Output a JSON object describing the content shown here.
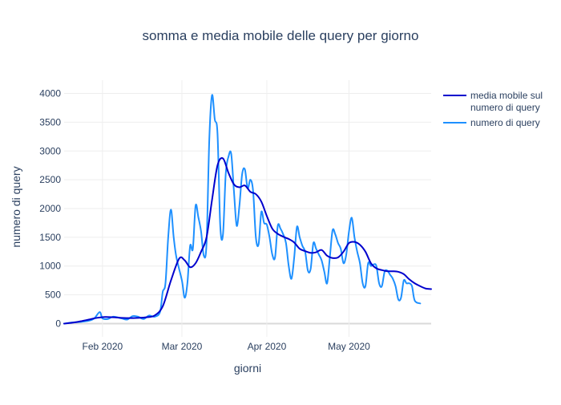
{
  "chart_data": {
    "type": "line",
    "title": "somma e media mobile delle query per giorno",
    "xlabel": "giorni",
    "ylabel": "numero di query",
    "x_tick_labels": [
      {
        "date": "2020-02-01",
        "label": "Feb 2020"
      },
      {
        "date": "2020-03-01",
        "label": "Mar 2020"
      },
      {
        "date": "2020-04-01",
        "label": "Apr 2020"
      },
      {
        "date": "2020-05-01",
        "label": "May 2020"
      }
    ],
    "x_range": [
      "2020-01-18",
      "2020-05-31"
    ],
    "y_range": [
      -230,
      4230
    ],
    "y_ticks": [
      0,
      500,
      1000,
      1500,
      2000,
      2500,
      3000,
      3500,
      4000
    ],
    "grid": true,
    "legend_position": "right",
    "series": [
      {
        "name": "media mobile sul numero di query",
        "legend_lines": [
          "media mobile sul",
          "numero di query"
        ],
        "color": "#0000cd",
        "points": [
          [
            "2020-01-18",
            0
          ],
          [
            "2020-01-21",
            15
          ],
          [
            "2020-01-24",
            40
          ],
          [
            "2020-01-27",
            70
          ],
          [
            "2020-01-30",
            100
          ],
          [
            "2020-02-02",
            115
          ],
          [
            "2020-02-05",
            110
          ],
          [
            "2020-02-08",
            100
          ],
          [
            "2020-02-11",
            95
          ],
          [
            "2020-02-14",
            100
          ],
          [
            "2020-02-17",
            110
          ],
          [
            "2020-02-20",
            140
          ],
          [
            "2020-02-23",
            300
          ],
          [
            "2020-02-26",
            750
          ],
          [
            "2020-02-29",
            1130
          ],
          [
            "2020-03-02",
            1100
          ],
          [
            "2020-03-04",
            980
          ],
          [
            "2020-03-06",
            1050
          ],
          [
            "2020-03-08",
            1250
          ],
          [
            "2020-03-10",
            1500
          ],
          [
            "2020-03-12",
            2150
          ],
          [
            "2020-03-14",
            2750
          ],
          [
            "2020-03-16",
            2870
          ],
          [
            "2020-03-18",
            2620
          ],
          [
            "2020-03-20",
            2420
          ],
          [
            "2020-03-22",
            2370
          ],
          [
            "2020-03-24",
            2400
          ],
          [
            "2020-03-26",
            2290
          ],
          [
            "2020-03-28",
            2250
          ],
          [
            "2020-03-30",
            2120
          ],
          [
            "2020-04-01",
            1870
          ],
          [
            "2020-04-03",
            1650
          ],
          [
            "2020-04-05",
            1560
          ],
          [
            "2020-04-07",
            1510
          ],
          [
            "2020-04-09",
            1470
          ],
          [
            "2020-04-11",
            1410
          ],
          [
            "2020-04-13",
            1300
          ],
          [
            "2020-04-15",
            1260
          ],
          [
            "2020-04-17",
            1230
          ],
          [
            "2020-04-19",
            1240
          ],
          [
            "2020-04-21",
            1280
          ],
          [
            "2020-04-23",
            1180
          ],
          [
            "2020-04-25",
            1140
          ],
          [
            "2020-04-27",
            1150
          ],
          [
            "2020-04-29",
            1250
          ],
          [
            "2020-05-01",
            1400
          ],
          [
            "2020-05-03",
            1420
          ],
          [
            "2020-05-05",
            1370
          ],
          [
            "2020-05-07",
            1250
          ],
          [
            "2020-05-09",
            1050
          ],
          [
            "2020-05-11",
            960
          ],
          [
            "2020-05-13",
            930
          ],
          [
            "2020-05-15",
            910
          ],
          [
            "2020-05-17",
            910
          ],
          [
            "2020-05-19",
            900
          ],
          [
            "2020-05-21",
            860
          ],
          [
            "2020-05-23",
            770
          ],
          [
            "2020-05-25",
            700
          ],
          [
            "2020-05-27",
            650
          ],
          [
            "2020-05-29",
            610
          ],
          [
            "2020-05-31",
            600
          ]
        ]
      },
      {
        "name": "numero di query",
        "legend_lines": [
          "numero di query"
        ],
        "color": "#1e90ff",
        "points": [
          [
            "2020-01-18",
            0
          ],
          [
            "2020-01-21",
            20
          ],
          [
            "2020-01-24",
            30
          ],
          [
            "2020-01-27",
            50
          ],
          [
            "2020-01-29",
            90
          ],
          [
            "2020-01-31",
            200
          ],
          [
            "2020-02-01",
            90
          ],
          [
            "2020-02-03",
            80
          ],
          [
            "2020-02-05",
            120
          ],
          [
            "2020-02-08",
            90
          ],
          [
            "2020-02-10",
            70
          ],
          [
            "2020-02-12",
            130
          ],
          [
            "2020-02-14",
            120
          ],
          [
            "2020-02-16",
            80
          ],
          [
            "2020-02-18",
            140
          ],
          [
            "2020-02-20",
            120
          ],
          [
            "2020-02-22",
            200
          ],
          [
            "2020-02-23",
            550
          ],
          [
            "2020-02-24",
            700
          ],
          [
            "2020-02-25",
            1500
          ],
          [
            "2020-02-26",
            1980
          ],
          [
            "2020-02-27",
            1500
          ],
          [
            "2020-02-28",
            1150
          ],
          [
            "2020-03-01",
            750
          ],
          [
            "2020-03-02",
            450
          ],
          [
            "2020-03-03",
            700
          ],
          [
            "2020-03-04",
            1350
          ],
          [
            "2020-03-05",
            1300
          ],
          [
            "2020-03-06",
            2050
          ],
          [
            "2020-03-07",
            1850
          ],
          [
            "2020-03-08",
            1600
          ],
          [
            "2020-03-09",
            1180
          ],
          [
            "2020-03-10",
            1400
          ],
          [
            "2020-03-11",
            3200
          ],
          [
            "2020-03-12",
            3970
          ],
          [
            "2020-03-13",
            3550
          ],
          [
            "2020-03-14",
            3300
          ],
          [
            "2020-03-15",
            1700
          ],
          [
            "2020-03-16",
            1550
          ],
          [
            "2020-03-17",
            2600
          ],
          [
            "2020-03-18",
            2900
          ],
          [
            "2020-03-19",
            2950
          ],
          [
            "2020-03-20",
            2300
          ],
          [
            "2020-03-21",
            1700
          ],
          [
            "2020-03-22",
            2050
          ],
          [
            "2020-03-23",
            2600
          ],
          [
            "2020-03-24",
            2680
          ],
          [
            "2020-03-25",
            2350
          ],
          [
            "2020-03-26",
            2500
          ],
          [
            "2020-03-27",
            2300
          ],
          [
            "2020-03-28",
            1500
          ],
          [
            "2020-03-29",
            1380
          ],
          [
            "2020-03-30",
            1940
          ],
          [
            "2020-03-31",
            1750
          ],
          [
            "2020-04-01",
            1720
          ],
          [
            "2020-04-02",
            1500
          ],
          [
            "2020-04-03",
            1200
          ],
          [
            "2020-04-04",
            1150
          ],
          [
            "2020-04-05",
            1700
          ],
          [
            "2020-04-06",
            1650
          ],
          [
            "2020-04-07",
            1550
          ],
          [
            "2020-04-08",
            1400
          ],
          [
            "2020-04-09",
            1000
          ],
          [
            "2020-04-10",
            780
          ],
          [
            "2020-04-11",
            1150
          ],
          [
            "2020-04-12",
            1680
          ],
          [
            "2020-04-13",
            1500
          ],
          [
            "2020-04-14",
            1350
          ],
          [
            "2020-04-15",
            1250
          ],
          [
            "2020-04-16",
            920
          ],
          [
            "2020-04-17",
            950
          ],
          [
            "2020-04-18",
            1400
          ],
          [
            "2020-04-19",
            1300
          ],
          [
            "2020-04-20",
            1200
          ],
          [
            "2020-04-21",
            1100
          ],
          [
            "2020-04-22",
            900
          ],
          [
            "2020-04-23",
            700
          ],
          [
            "2020-04-24",
            1150
          ],
          [
            "2020-04-25",
            1620
          ],
          [
            "2020-04-26",
            1550
          ],
          [
            "2020-04-27",
            1400
          ],
          [
            "2020-04-28",
            1300
          ],
          [
            "2020-04-29",
            1050
          ],
          [
            "2020-04-30",
            1200
          ],
          [
            "2020-05-01",
            1600
          ],
          [
            "2020-05-02",
            1840
          ],
          [
            "2020-05-03",
            1500
          ],
          [
            "2020-05-04",
            1250
          ],
          [
            "2020-05-05",
            1050
          ],
          [
            "2020-05-06",
            700
          ],
          [
            "2020-05-07",
            650
          ],
          [
            "2020-05-08",
            1050
          ],
          [
            "2020-05-09",
            1000
          ],
          [
            "2020-05-10",
            1030
          ],
          [
            "2020-05-11",
            1000
          ],
          [
            "2020-05-12",
            700
          ],
          [
            "2020-05-13",
            650
          ],
          [
            "2020-05-14",
            900
          ],
          [
            "2020-05-15",
            920
          ],
          [
            "2020-05-16",
            850
          ],
          [
            "2020-05-17",
            780
          ],
          [
            "2020-05-18",
            650
          ],
          [
            "2020-05-19",
            420
          ],
          [
            "2020-05-20",
            450
          ],
          [
            "2020-05-21",
            750
          ],
          [
            "2020-05-22",
            700
          ],
          [
            "2020-05-23",
            700
          ],
          [
            "2020-05-24",
            650
          ],
          [
            "2020-05-25",
            400
          ],
          [
            "2020-05-27",
            350
          ]
        ]
      }
    ]
  }
}
